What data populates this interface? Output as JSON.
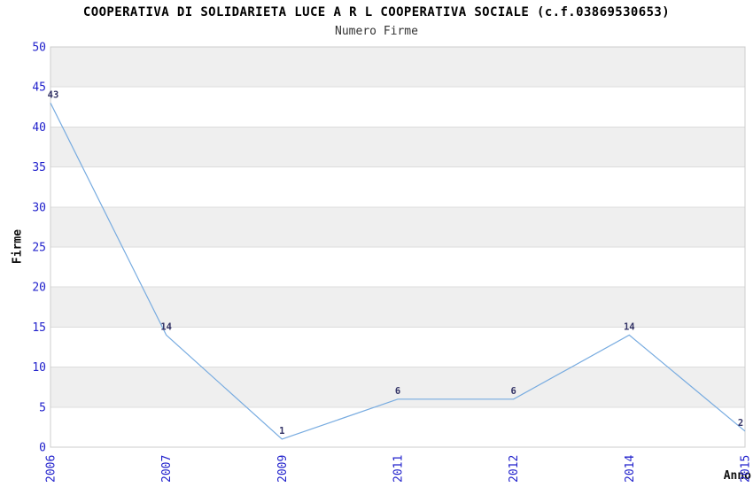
{
  "header": {
    "title": "COOPERATIVA DI SOLIDARIETA LUCE A R L COOPERATIVA SOCIALE (c.f.03869530653)",
    "subtitle": "Numero Firme"
  },
  "chart_data": {
    "type": "line",
    "categories": [
      "2006",
      "2007",
      "2009",
      "2011",
      "2012",
      "2014",
      "2015"
    ],
    "values": [
      43,
      14,
      1,
      6,
      6,
      14,
      2
    ],
    "title": "COOPERATIVA DI SOLIDARIETA LUCE A R L COOPERATIVA SOCIALE (c.f.03869530653)",
    "subtitle": "Numero Firme",
    "xlabel": "Anno",
    "ylabel": "Firme",
    "ylim": [
      0,
      50
    ],
    "ytick_step": 5,
    "grid": "horizontal-only",
    "bands": "alternating gray stripes every 5 units (5-10, 15-20, 25-30, 35-40, 45-50)",
    "legend": "none",
    "point_labels_shown": true,
    "x_tick_rotation": -90,
    "colors": {
      "line": "#77ABE0",
      "tick_labels": "#2222CC",
      "point_labels": "#333366",
      "band_fill": "#EFEFEF",
      "grid_line": "#DCDCDC",
      "plot_border": "#CCCCCC",
      "title_text": "#000000"
    }
  }
}
